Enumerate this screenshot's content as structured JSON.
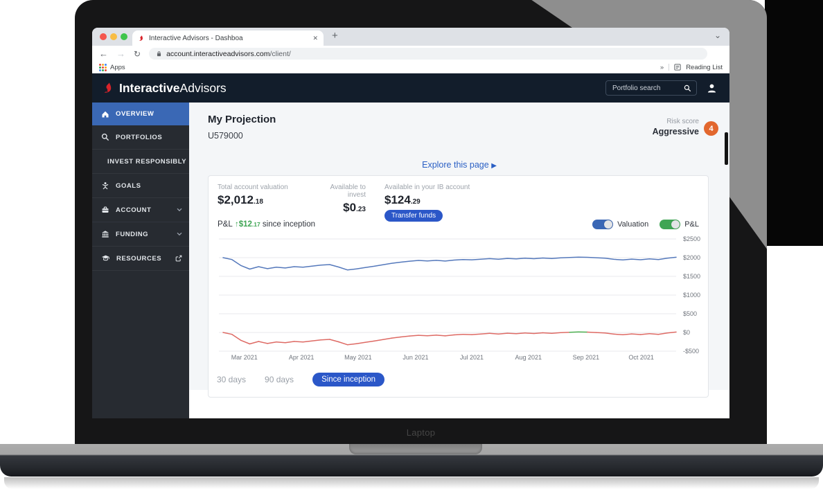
{
  "browser": {
    "tab_title": "Interactive Advisors - Dashboa",
    "url_domain": "account.interactiveadvisors.com",
    "url_path": "/client/",
    "apps_label": "Apps",
    "reading_list_label": "Reading List",
    "glyphs": {
      "close": "✕",
      "new_tab": "+",
      "chevron_down": "⌄",
      "back": "←",
      "forward": "→",
      "reload": "↻",
      "star": "☆",
      "more": "»"
    }
  },
  "header": {
    "brand_bold": "Interactive",
    "brand_light": "Advisors",
    "search_placeholder": "Portfolio search"
  },
  "sidebar": {
    "items": [
      {
        "label": "OVERVIEW",
        "icon": "home-icon",
        "active": true
      },
      {
        "label": "PORTFOLIOS",
        "icon": "search-icon"
      },
      {
        "label": "INVEST RESPONSIBLY",
        "icon": "leaf-icon",
        "chevron": true
      },
      {
        "label": "GOALS",
        "icon": "goals-icon"
      },
      {
        "label": "ACCOUNT",
        "icon": "briefcase-icon",
        "chevron": true
      },
      {
        "label": "FUNDING",
        "icon": "bank-icon",
        "chevron": true
      },
      {
        "label": "RESOURCES",
        "icon": "graduation-cap-icon",
        "external": true
      }
    ]
  },
  "page": {
    "title": "My Projection",
    "account_id": "U579000",
    "risk_label": "Risk score",
    "risk_value": "Aggressive",
    "risk_badge": "4",
    "explore_label": "Explore this page",
    "explore_arrow": "▶"
  },
  "stats": [
    {
      "label": "Total account valuation",
      "amount": "$2,012",
      "cents": ".18"
    },
    {
      "label": "Available to invest",
      "amount": "$0",
      "cents": ".23"
    },
    {
      "label": "Available in your IB account",
      "amount": "$124",
      "cents": ".29",
      "button": "Transfer funds"
    }
  ],
  "pnl_line": {
    "label": "P&L",
    "arrow": "↑",
    "amount": "$12",
    "cents": ".17",
    "suffix": "since inception"
  },
  "toggles": [
    {
      "label": "Valuation",
      "color": "#3a67b5",
      "on": true
    },
    {
      "label": "P&L",
      "color": "#3fa554",
      "on": true
    }
  ],
  "periods": [
    {
      "label": "30 days",
      "active": false
    },
    {
      "label": "90 days",
      "active": false
    },
    {
      "label": "Since inception",
      "active": true
    }
  ],
  "chart_data": {
    "type": "line",
    "title": "Account valuation and P&L since inception",
    "xlabel": "",
    "ylabel": "",
    "ylim": [
      -560,
      2560
    ],
    "grid": true,
    "legend_position": "none",
    "y_ticks": [
      "$2500",
      "$2000",
      "$1500",
      "$1000",
      "$500",
      "$0",
      "-$500"
    ],
    "y_tick_values": [
      2500,
      2000,
      1500,
      1000,
      500,
      0,
      -500
    ],
    "x_ticks": [
      {
        "label": "Mar 2021",
        "f": 0.047
      },
      {
        "label": "Apr 2021",
        "f": 0.173
      },
      {
        "label": "May 2021",
        "f": 0.298
      },
      {
        "label": "Jun 2021",
        "f": 0.425
      },
      {
        "label": "Jul 2021",
        "f": 0.549
      },
      {
        "label": "Aug 2021",
        "f": 0.674
      },
      {
        "label": "Sep 2021",
        "f": 0.801
      },
      {
        "label": "Oct 2021",
        "f": 0.923
      }
    ],
    "series": [
      {
        "name": "Valuation",
        "color": "#5478bb",
        "values": [
          2000,
          1950,
          1790,
          1695,
          1760,
          1705,
          1745,
          1725,
          1760,
          1747,
          1772,
          1800,
          1815,
          1750,
          1672,
          1700,
          1735,
          1770,
          1812,
          1850,
          1880,
          1905,
          1925,
          1912,
          1928,
          1910,
          1935,
          1950,
          1942,
          1958,
          1975,
          1960,
          1980,
          1968,
          1985,
          1972,
          1990,
          1978,
          1995,
          2005,
          2015,
          2010,
          1998,
          1985,
          1955,
          1938,
          1962,
          1945,
          1968,
          1950,
          1985,
          2012
        ]
      },
      {
        "name": "P&L",
        "color": "#de6a64",
        "color_positive": "#4caf50",
        "values": [
          0,
          -50,
          -210,
          -305,
          -240,
          -295,
          -255,
          -275,
          -240,
          -253,
          -228,
          -200,
          -185,
          -250,
          -328,
          -300,
          -265,
          -230,
          -188,
          -150,
          -120,
          -95,
          -75,
          -88,
          -72,
          -90,
          -65,
          -50,
          -58,
          -42,
          -25,
          -40,
          -20,
          -32,
          -15,
          -28,
          -10,
          -22,
          -5,
          5,
          15,
          10,
          -2,
          -15,
          -45,
          -62,
          -38,
          -55,
          -32,
          -50,
          -15,
          12
        ]
      }
    ]
  },
  "laptop_label": "Laptop",
  "colors": {
    "header_navy": "#121d2b",
    "nav_active_blue": "#3a68b5",
    "accent_blue": "#2b57c8",
    "link_blue": "#2a5fc4",
    "risk_orange": "#e2672e",
    "positive_green": "#3fa554",
    "negative_red": "#de6a64",
    "valuation_blue": "#5478bb"
  }
}
